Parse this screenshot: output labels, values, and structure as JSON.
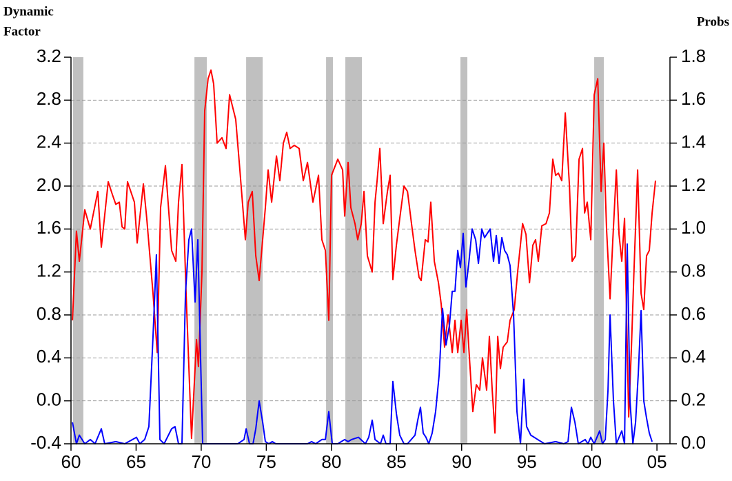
{
  "chart_data": {
    "type": "line",
    "y_label": [
      "Dynamic",
      "Factor"
    ],
    "y2_label": "Probs",
    "xlim": [
      1960,
      2006
    ],
    "xticks": [
      {
        "value": 1960,
        "label": "60"
      },
      {
        "value": 1965,
        "label": "65"
      },
      {
        "value": 1970,
        "label": "70"
      },
      {
        "value": 1975,
        "label": "75"
      },
      {
        "value": 1980,
        "label": "80"
      },
      {
        "value": 1985,
        "label": "85"
      },
      {
        "value": 1990,
        "label": "90"
      },
      {
        "value": 1995,
        "label": "95"
      },
      {
        "value": 2000,
        "label": "00"
      },
      {
        "value": 2005,
        "label": "05"
      }
    ],
    "ylim": [
      -0.4,
      3.2
    ],
    "yticks": [
      -0.4,
      {
        "value": 0,
        "label": "0.0"
      },
      0.4,
      0.8,
      1.2,
      1.6,
      {
        "value": 2,
        "label": "2.0"
      },
      2.4,
      2.8,
      3.2
    ],
    "y2lim": [
      0,
      1.8
    ],
    "y2ticks": [
      {
        "value": 0,
        "label": "0.0"
      },
      0.2,
      0.4,
      0.6,
      0.8,
      {
        "value": 1,
        "label": "1.0"
      },
      1.2,
      1.4,
      1.6,
      1.8
    ],
    "grid": true,
    "shade_color": "#c0c0c0",
    "shaded_periods": [
      [
        1960.16,
        1960.95
      ],
      [
        1969.48,
        1970.43
      ],
      [
        1973.45,
        1974.72
      ],
      [
        1979.59,
        1980.12
      ],
      [
        1981.07,
        1982.34
      ],
      [
        1989.91,
        1990.44
      ],
      [
        2000.18,
        2000.92
      ]
    ],
    "series": [
      {
        "color": "#ff0000",
        "axis": "y",
        "x": [
          1960.11,
          1960.42,
          1960.64,
          1961.06,
          1961.48,
          1962.06,
          1962.33,
          1962.86,
          1963.18,
          1963.44,
          1963.71,
          1963.92,
          1964.13,
          1964.34,
          1964.87,
          1965.08,
          1965.56,
          1965.82,
          1966.3,
          1966.62,
          1966.88,
          1967.25,
          1967.73,
          1968.05,
          1968.26,
          1968.52,
          1968.84,
          1969.26,
          1969.64,
          1969.79,
          1970.06,
          1970.27,
          1970.53,
          1970.75,
          1970.96,
          1971.22,
          1971.59,
          1971.91,
          1972.18,
          1972.65,
          1972.97,
          1973.39,
          1973.61,
          1973.92,
          1974.19,
          1974.45,
          1974.93,
          1975.14,
          1975.41,
          1975.78,
          1976.04,
          1976.31,
          1976.57,
          1976.83,
          1977.15,
          1977.52,
          1977.84,
          1978.16,
          1978.58,
          1979.01,
          1979.27,
          1979.54,
          1979.8,
          1980.01,
          1980.49,
          1980.86,
          1981.02,
          1981.28,
          1981.49,
          1981.81,
          1982.02,
          1982.29,
          1982.5,
          1982.76,
          1983.13,
          1983.35,
          1983.51,
          1983.72,
          1983.98,
          1984.3,
          1984.51,
          1984.72,
          1984.99,
          1985.25,
          1985.57,
          1985.84,
          1986.15,
          1986.42,
          1986.73,
          1986.89,
          1987.21,
          1987.42,
          1987.63,
          1987.9,
          1988.22,
          1988.43,
          1988.69,
          1988.96,
          1989.28,
          1989.49,
          1989.7,
          1989.96,
          1990.18,
          1990.39,
          1990.55,
          1990.86,
          1991.13,
          1991.39,
          1991.6,
          1991.82,
          1991.92,
          1992.13,
          1992.35,
          1992.56,
          1992.77,
          1992.98,
          1993.19,
          1993.51,
          1993.72,
          1994.04,
          1994.3,
          1994.68,
          1994.94,
          1995.21,
          1995.47,
          1995.68,
          1995.89,
          1996.16,
          1996.48,
          1996.74,
          1997.0,
          1997.22,
          1997.43,
          1997.69,
          1997.96,
          1998.28,
          1998.49,
          1998.75,
          1999.02,
          1999.28,
          1999.44,
          1999.65,
          1999.92,
          2000.18,
          2000.45,
          2000.71,
          2000.92,
          2001.13,
          2001.4,
          2001.61,
          2001.88,
          2002.09,
          2002.3,
          2002.51,
          2002.83,
          2003.04,
          2003.25,
          2003.52,
          2003.78,
          2003.99,
          2004.2,
          2004.41,
          2004.63,
          2004.89
        ],
        "values": [
          0.75,
          1.58,
          1.3,
          1.78,
          1.6,
          1.95,
          1.43,
          2.04,
          1.92,
          1.83,
          1.85,
          1.62,
          1.6,
          2.04,
          1.85,
          1.47,
          2.02,
          1.7,
          1.0,
          0.45,
          1.8,
          2.19,
          1.4,
          1.3,
          1.85,
          2.2,
          1.0,
          -0.35,
          0.57,
          0.32,
          1.2,
          2.7,
          3.0,
          3.08,
          2.95,
          2.4,
          2.45,
          2.35,
          2.85,
          2.62,
          2.15,
          1.5,
          1.85,
          1.95,
          1.35,
          1.12,
          1.8,
          2.15,
          1.85,
          2.28,
          2.05,
          2.4,
          2.5,
          2.35,
          2.38,
          2.35,
          2.05,
          2.22,
          1.85,
          2.1,
          1.5,
          1.4,
          0.75,
          2.1,
          2.25,
          2.15,
          1.72,
          2.22,
          1.8,
          1.65,
          1.5,
          1.65,
          1.95,
          1.35,
          1.2,
          1.85,
          2.05,
          2.35,
          1.65,
          1.95,
          2.1,
          1.13,
          1.45,
          1.7,
          2.0,
          1.95,
          1.65,
          1.4,
          1.15,
          1.12,
          1.5,
          1.48,
          1.85,
          1.3,
          1.1,
          0.9,
          0.5,
          0.8,
          0.45,
          0.75,
          0.45,
          0.75,
          0.45,
          0.85,
          0.5,
          -0.1,
          0.15,
          0.1,
          0.4,
          0.2,
          0.1,
          0.6,
          0.1,
          -0.3,
          0.6,
          0.3,
          0.5,
          0.55,
          0.75,
          0.85,
          1.2,
          1.65,
          1.55,
          1.1,
          1.45,
          1.5,
          1.3,
          1.63,
          1.65,
          1.75,
          2.25,
          2.1,
          2.12,
          2.05,
          2.68,
          2.0,
          1.3,
          1.35,
          2.25,
          2.35,
          1.75,
          1.85,
          1.5,
          2.85,
          3.0,
          1.95,
          2.4,
          1.6,
          0.95,
          1.5,
          2.15,
          1.55,
          1.3,
          1.7,
          -0.15,
          0.5,
          1.25,
          2.15,
          1.0,
          0.85,
          1.35,
          1.4,
          1.75,
          2.05
        ]
      },
      {
        "color": "#0000ff",
        "axis": "y2",
        "x": [
          1960.11,
          1960.42,
          1960.64,
          1961.06,
          1961.48,
          1961.85,
          1962.33,
          1962.59,
          1963.44,
          1964.13,
          1965.03,
          1965.29,
          1965.66,
          1965.98,
          1966.3,
          1966.56,
          1966.83,
          1967.15,
          1967.73,
          1967.99,
          1968.26,
          1968.52,
          1968.79,
          1969.05,
          1969.26,
          1969.53,
          1969.74,
          1969.95,
          1970.11,
          1972.81,
          1973.29,
          1973.45,
          1973.71,
          1973.98,
          1974.19,
          1974.45,
          1974.72,
          1974.93,
          1975.19,
          1975.46,
          1975.72,
          1978.16,
          1978.48,
          1978.79,
          1979.27,
          1979.54,
          1979.8,
          1980.06,
          1980.49,
          1981.02,
          1981.28,
          1981.55,
          1982.08,
          1982.61,
          1982.87,
          1983.13,
          1983.35,
          1983.77,
          1983.98,
          1984.19,
          1984.51,
          1984.72,
          1984.99,
          1985.25,
          1985.57,
          1985.84,
          1986.42,
          1986.63,
          1986.84,
          1987.05,
          1987.26,
          1987.48,
          1987.74,
          1988.0,
          1988.27,
          1988.53,
          1988.8,
          1989.06,
          1989.28,
          1989.49,
          1989.7,
          1989.91,
          1990.12,
          1990.33,
          1990.55,
          1990.81,
          1991.08,
          1991.29,
          1991.55,
          1991.76,
          1991.98,
          1992.19,
          1992.45,
          1992.66,
          1992.87,
          1993.09,
          1993.3,
          1993.51,
          1993.72,
          1993.99,
          1994.25,
          1994.52,
          1994.78,
          1994.99,
          1995.31,
          1995.84,
          1996.37,
          1997.22,
          1997.85,
          1998.17,
          1998.43,
          1998.7,
          1998.96,
          1999.49,
          1999.7,
          1999.92,
          2000.18,
          2000.6,
          2000.82,
          2001.03,
          2001.24,
          2001.4,
          2001.66,
          2001.88,
          2002.3,
          2002.51,
          2002.72,
          2002.93,
          2003.15,
          2003.36,
          2003.57,
          2003.78,
          2003.99,
          2004.2,
          2004.41,
          2004.63
        ],
        "values": [
          0.1,
          0,
          0.04,
          0,
          0.02,
          0,
          0.07,
          0,
          0.01,
          0,
          0.03,
          0,
          0.02,
          0.08,
          0.5,
          0.88,
          0.02,
          0,
          0.07,
          0.08,
          0,
          0,
          0.7,
          0.95,
          1.0,
          0.66,
          0.95,
          0.4,
          0,
          0,
          0.02,
          0.07,
          0,
          0,
          0.07,
          0.2,
          0.1,
          0.01,
          0,
          0.01,
          0,
          0,
          0.01,
          0,
          0.02,
          0.02,
          0.15,
          0,
          0,
          0.02,
          0.01,
          0.02,
          0.03,
          0,
          0.03,
          0.11,
          0.02,
          0,
          0.04,
          0,
          0,
          0.29,
          0.14,
          0.04,
          0,
          0,
          0.04,
          0.11,
          0.17,
          0.05,
          0.03,
          0,
          0.05,
          0.15,
          0.32,
          0.63,
          0.46,
          0.55,
          0.71,
          0.71,
          0.9,
          0.82,
          0.98,
          0.73,
          0.84,
          1.0,
          0.95,
          0.84,
          1.0,
          0.96,
          0.98,
          1.0,
          0.85,
          0.97,
          0.84,
          0.96,
          0.9,
          0.88,
          0.83,
          0.6,
          0.15,
          0,
          0.3,
          0.08,
          0.04,
          0.02,
          0,
          0.01,
          0,
          0.01,
          0.17,
          0.1,
          0,
          0.02,
          0,
          0.03,
          0,
          0.06,
          0,
          0.02,
          0.25,
          0.6,
          0.2,
          0,
          0.06,
          0,
          0.93,
          0.2,
          0,
          0.1,
          0.33,
          0.62,
          0.2,
          0.12,
          0.05,
          0.01
        ]
      }
    ]
  }
}
